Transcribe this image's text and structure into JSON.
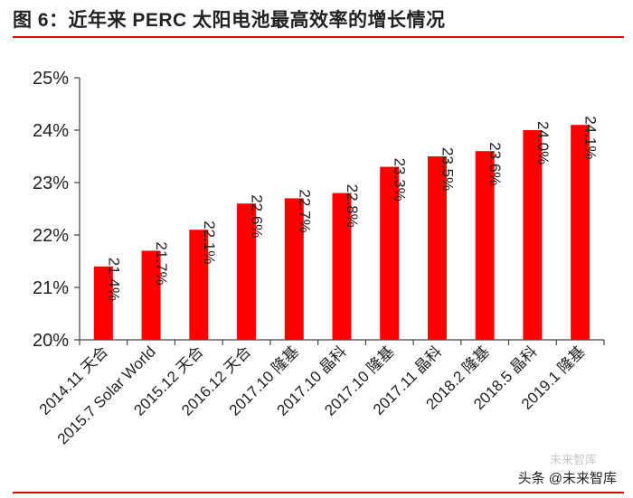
{
  "figure": {
    "title": "图 6：近年来 PERC 太阳电池最高效率的增长情况",
    "watermark": "头条 @未来智库",
    "watermark_faint": "未来智库",
    "rule_color": "#e00000"
  },
  "chart_data": {
    "type": "bar",
    "title": "",
    "xlabel": "",
    "ylabel": "",
    "ylim": [
      20,
      25
    ],
    "yticks": [
      20,
      21,
      22,
      23,
      24,
      25
    ],
    "ytick_labels": [
      "20%",
      "21%",
      "22%",
      "23%",
      "24%",
      "25%"
    ],
    "grid": false,
    "bar_color": "#ff0000",
    "categories": [
      "2014.11 天合",
      "2015.7 Solar World",
      "2015.12 天合",
      "2016.12 天合",
      "2017.10 隆基",
      "2017.10 晶科",
      "2017.10 隆基",
      "2017.11 晶科",
      "2018.2 隆基",
      "2018.5 晶科",
      "2019.1 隆基"
    ],
    "values": [
      21.4,
      21.7,
      22.1,
      22.6,
      22.7,
      22.8,
      23.3,
      23.5,
      23.6,
      24.0,
      24.1
    ],
    "data_labels": [
      "21.4%",
      "21.7%",
      "22.1%",
      "22.6%",
      "22.7%",
      "22.8%",
      "23.3%",
      "23.5%",
      "23.6%",
      "24.0%",
      "24.1%"
    ]
  }
}
